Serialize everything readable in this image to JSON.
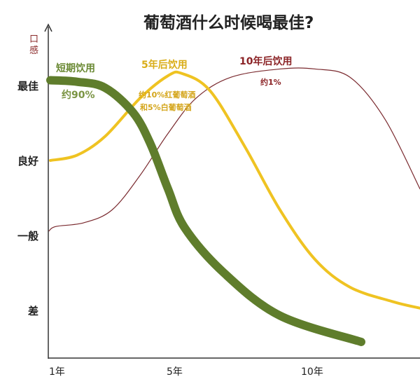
{
  "chart_data": {
    "type": "line",
    "title": "葡萄酒什么时候喝最佳?",
    "ylabel": "口感",
    "xlabel": "",
    "x_ticks": [
      {
        "value": 1,
        "label": "1年"
      },
      {
        "value": 5,
        "label": "5年"
      },
      {
        "value": 10,
        "label": "10年"
      }
    ],
    "y_ticks": [
      {
        "value": 4,
        "label": "最佳"
      },
      {
        "value": 3,
        "label": "良好"
      },
      {
        "value": 2,
        "label": "一般"
      },
      {
        "value": 1,
        "label": "差"
      }
    ],
    "xlim": [
      0.8,
      14
    ],
    "ylim": [
      0.3,
      4.8
    ],
    "grid": false,
    "series": [
      {
        "name": "短期饮用",
        "note": "约90%",
        "color": "#5f7d2c",
        "x": [
          0.8,
          1.75,
          2.75,
          3.75,
          4.375,
          5,
          5.6,
          7,
          9,
          11.9
        ],
        "y": [
          4.07,
          4.05,
          3.97,
          3.64,
          3.22,
          2.62,
          2.1,
          1.5,
          0.93,
          0.58
        ]
      },
      {
        "name": "5年后饮用",
        "note": "约10%红葡萄酒",
        "note2": "和5%白葡萄酒",
        "color": "#efc322",
        "x": [
          0.8,
          1.75,
          2.75,
          4,
          5,
          5.5,
          6.5,
          7.75,
          9,
          10.25,
          11.5,
          13,
          14
        ],
        "y": [
          3.0,
          3.07,
          3.32,
          3.83,
          4.13,
          4.16,
          3.93,
          3.18,
          2.34,
          1.68,
          1.31,
          1.12,
          1.03
        ]
      },
      {
        "name": "10年后饮用",
        "note": "约1%",
        "color": "#7a2a2f",
        "x": [
          0.75,
          1,
          2,
          3,
          4,
          5,
          6,
          7.25,
          9,
          10.25,
          11.5,
          12.75,
          14
        ],
        "y": [
          2.06,
          2.12,
          2.17,
          2.34,
          2.8,
          3.36,
          3.83,
          4.11,
          4.22,
          4.22,
          4.11,
          3.55,
          2.62
        ]
      }
    ]
  }
}
